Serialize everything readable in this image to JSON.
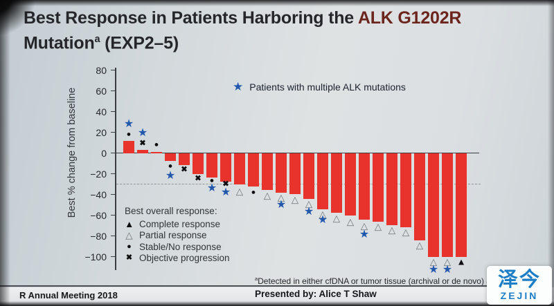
{
  "slide": {
    "title_line1_prefix": "Best Response in Patients Harboring the ",
    "title_line1_highlight": "ALK G1202R",
    "title_line2_word": "Mutation",
    "title_line2_sup": "a",
    "title_line2_rest": " (EXP2–5)",
    "title_highlight_color": "#6b251d"
  },
  "chart_data": {
    "type": "bar",
    "subtype": "waterfall-best-response",
    "title": "Best Response in Patients Harboring the ALK G1202R Mutation (EXP2-5)",
    "xlabel": "",
    "ylabel": "Best % change from baseline",
    "ylim": [
      -115,
      82
    ],
    "yticks": [
      80,
      60,
      40,
      20,
      0,
      -20,
      -40,
      -60,
      -80,
      -100
    ],
    "ytick_labels": [
      "80",
      "60",
      "40",
      "20",
      "0",
      "−20",
      "−40",
      "−60",
      "−80",
      "−100"
    ],
    "reference_line_y": -30,
    "grid": false,
    "bar_color": "#e8332c",
    "star_color": "#2158ac",
    "star_symbol": "★",
    "star_legend_label": "Patients with multiple ALK mutations",
    "legend": {
      "title": "Best overall response:",
      "position": "inside lower-left",
      "items": [
        {
          "symbol": "▲",
          "label": "Complete response",
          "type": "complete"
        },
        {
          "symbol": "△",
          "label": "Partial response",
          "type": "partial"
        },
        {
          "symbol": "●",
          "label": "Stable/No response",
          "type": "stable"
        },
        {
          "symbol": "✖",
          "label": "Objective progression",
          "type": "progression"
        }
      ]
    },
    "bars": [
      {
        "value": 12,
        "response": "stable",
        "marker_y": 18,
        "star": true,
        "star_y": 28
      },
      {
        "value": 3,
        "response": "progression",
        "marker_y": 9,
        "star": true,
        "star_y": 19
      },
      {
        "value": 1,
        "response": "stable",
        "marker_y": 8,
        "star": false
      },
      {
        "value": -7,
        "response": "stable",
        "marker_y": -13,
        "star": true,
        "star_y": -22
      },
      {
        "value": -11,
        "response": "progression",
        "marker_y": -16,
        "star": false
      },
      {
        "value": -20,
        "response": "progression",
        "marker_y": -25,
        "star": false
      },
      {
        "value": -23,
        "response": "stable",
        "marker_y": -27,
        "star": true,
        "star_y": -34
      },
      {
        "value": -27,
        "response": "progression",
        "marker_y": -30,
        "star": true,
        "star_y": -38
      },
      {
        "value": -30,
        "response": "partial",
        "marker_y": -37,
        "star": false
      },
      {
        "value": -32,
        "response": "stable",
        "marker_y": -38,
        "star": false
      },
      {
        "value": -35,
        "response": "partial",
        "marker_y": -41,
        "star": false
      },
      {
        "value": -38,
        "response": "partial",
        "marker_y": -43,
        "star": true,
        "star_y": -50
      },
      {
        "value": -39,
        "response": "partial",
        "marker_y": -45,
        "star": false
      },
      {
        "value": -44,
        "response": "partial",
        "marker_y": -49,
        "star": true,
        "star_y": -57
      },
      {
        "value": -54,
        "response": "partial",
        "marker_y": -59,
        "star": true,
        "star_y": -65
      },
      {
        "value": -57,
        "response": "partial",
        "marker_y": -63,
        "star": false
      },
      {
        "value": -60,
        "response": "partial",
        "marker_y": -66,
        "star": false
      },
      {
        "value": -64,
        "response": "partial",
        "marker_y": -70,
        "star": true,
        "star_y": -79
      },
      {
        "value": -66,
        "response": "partial",
        "marker_y": -71,
        "star": false
      },
      {
        "value": -69,
        "response": "partial",
        "marker_y": -74,
        "star": false
      },
      {
        "value": -71,
        "response": "partial",
        "marker_y": -76,
        "star": false
      },
      {
        "value": -84,
        "response": "partial",
        "marker_y": -89,
        "star": false
      },
      {
        "value": -100,
        "response": "partial",
        "marker_y": -105,
        "star": true,
        "star_y": -113
      },
      {
        "value": -100,
        "response": "partial",
        "marker_y": -105,
        "star": true,
        "star_y": -113
      },
      {
        "value": -100,
        "response": "complete",
        "marker_y": -105,
        "star": false
      }
    ]
  },
  "footnote": {
    "sup": "a",
    "text": "Detected in either cfDNA or tumor tissue (archival or de novo) an"
  },
  "footer": {
    "left": "R Annual Meeting 2018",
    "presented": "Presented by: Alice T Shaw"
  },
  "logo": {
    "cn": "泽今",
    "en": "ZEJIN",
    "color": "#1b7ec6"
  }
}
